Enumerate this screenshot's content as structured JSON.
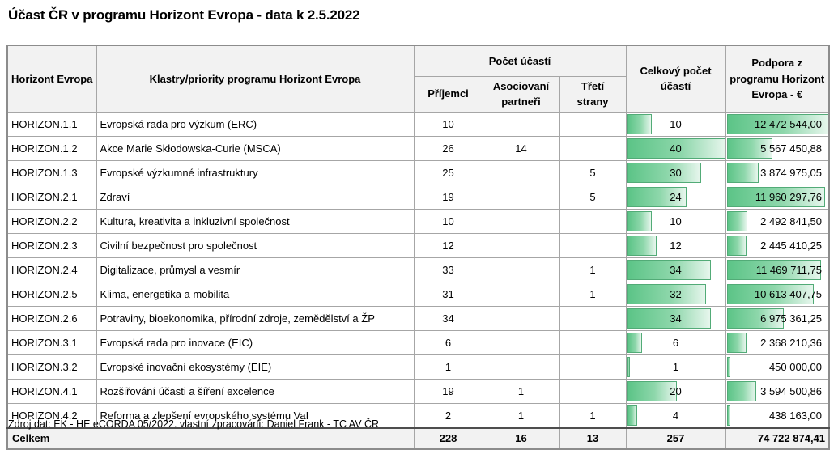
{
  "title": "Účast ČR v programu Horizont Evropa - data k 2.5.2022",
  "footer_note": "Zdroj dat: EK - HE eCORDA 05/2022. vlastní zpracování: Daniel Frank - TC AV ČR",
  "colors": {
    "databar_fill": "#5cc487",
    "databar_border": "#52ab77",
    "header_bg": "#f2f2f2",
    "grid_line": "#a6a6a6"
  },
  "table": {
    "headers": {
      "col_program": "Horizont Evropa",
      "col_clusters": "Klastry/priority programu Horizont Evropa",
      "group_participations": "Počet účastí",
      "col_beneficiaries": "Příjemci",
      "col_associated": "Asociovaní partneři",
      "col_third": "Třetí strany",
      "col_total": "Celkový počet účastí",
      "col_support": "Podpora z programu Horizont Evropa - €"
    },
    "totals": {
      "label": "Celkem",
      "beneficiaries": "228",
      "associated_partners": "16",
      "third_parties": "13",
      "total_participations": "257",
      "support": "74 722 874,41"
    }
  },
  "chart_data": {
    "type": "table",
    "title": "Účast ČR v programu Horizont Evropa - data k 2.5.2022",
    "columns": [
      "Horizont Evropa",
      "Klastry/priority programu Horizont Evropa",
      "Příjemci",
      "Asociovaní partneři",
      "Třetí strany",
      "Celkový počet účastí",
      "Podpora z programu Horizont Evropa - €"
    ],
    "column_group": {
      "label": "Počet účastí",
      "spans": [
        "Příjemci",
        "Asociovaní partneři",
        "Třetí strany"
      ]
    },
    "databar_max": {
      "total_participations": 40,
      "support": 12472544.0
    },
    "rows": [
      {
        "code": "HORIZON.1.1",
        "name": "Evropská rada pro výzkum (ERC)",
        "beneficiaries": "10",
        "associated": "",
        "third": "",
        "total": 10,
        "support_display": "12 472 544,00",
        "support_value": 12472544.0
      },
      {
        "code": "HORIZON.1.2",
        "name": "Akce Marie Skłodowska-Curie (MSCA)",
        "beneficiaries": "26",
        "associated": "14",
        "third": "",
        "total": 40,
        "support_display": "5 567 450,88",
        "support_value": 5567450.88
      },
      {
        "code": "HORIZON.1.3",
        "name": "Evropské výzkumné infrastruktury",
        "beneficiaries": "25",
        "associated": "",
        "third": "5",
        "total": 30,
        "support_display": "3 874 975,05",
        "support_value": 3874975.05
      },
      {
        "code": "HORIZON.2.1",
        "name": "Zdraví",
        "beneficiaries": "19",
        "associated": "",
        "third": "5",
        "total": 24,
        "support_display": "11 960 297,76",
        "support_value": 11960297.76
      },
      {
        "code": "HORIZON.2.2",
        "name": "Kultura, kreativita a inkluzivní společnost",
        "beneficiaries": "10",
        "associated": "",
        "third": "",
        "total": 10,
        "support_display": "2 492 841,50",
        "support_value": 2492841.5
      },
      {
        "code": "HORIZON.2.3",
        "name": "Civilní bezpečnost pro společnost",
        "beneficiaries": "12",
        "associated": "",
        "third": "",
        "total": 12,
        "support_display": "2 445 410,25",
        "support_value": 2445410.25
      },
      {
        "code": "HORIZON.2.4",
        "name": "Digitalizace, průmysl a vesmír",
        "beneficiaries": "33",
        "associated": "",
        "third": "1",
        "total": 34,
        "support_display": "11 469 711,75",
        "support_value": 11469711.75
      },
      {
        "code": "HORIZON.2.5",
        "name": "Klima, energetika a mobilita",
        "beneficiaries": "31",
        "associated": "",
        "third": "1",
        "total": 32,
        "support_display": "10 613 407,75",
        "support_value": 10613407.75
      },
      {
        "code": "HORIZON.2.6",
        "name": "Potraviny, bioekonomika, přírodní zdroje, zemědělství a ŽP",
        "beneficiaries": "34",
        "associated": "",
        "third": "",
        "total": 34,
        "support_display": "6 975 361,25",
        "support_value": 6975361.25
      },
      {
        "code": "HORIZON.3.1",
        "name": "Evropská rada pro inovace (EIC)",
        "beneficiaries": "6",
        "associated": "",
        "third": "",
        "total": 6,
        "support_display": "2 368 210,36",
        "support_value": 2368210.36
      },
      {
        "code": "HORIZON.3.2",
        "name": "Evropské inovační ekosystémy (EIE)",
        "beneficiaries": "1",
        "associated": "",
        "third": "",
        "total": 1,
        "support_display": "450 000,00",
        "support_value": 450000.0
      },
      {
        "code": "HORIZON.4.1",
        "name": "Rozšiřování účasti a šíření excelence",
        "beneficiaries": "19",
        "associated": "1",
        "third": "",
        "total": 20,
        "support_display": "3 594 500,86",
        "support_value": 3594500.86
      },
      {
        "code": "HORIZON.4.2",
        "name": "Reforma a zlepšení evropského systému VaI",
        "beneficiaries": "2",
        "associated": "1",
        "third": "1",
        "total": 4,
        "support_display": "438 163,00",
        "support_value": 438163.0
      }
    ],
    "totals_row": [
      "Celkem",
      "",
      "228",
      "16",
      "13",
      "257",
      "74 722 874,41"
    ]
  }
}
